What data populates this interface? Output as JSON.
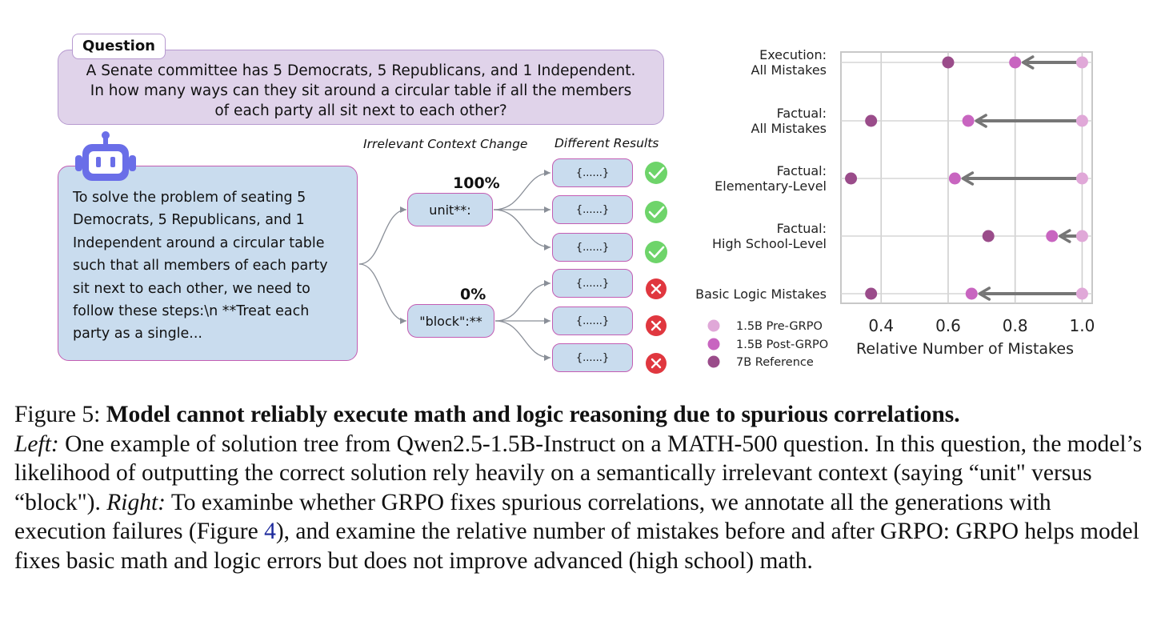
{
  "left_panel": {
    "question_tag": "Question",
    "question_lines": [
      "A Senate committee has 5 Democrats, 5 Republicans, and 1 Independent.",
      "In how many ways can they sit around a circular table if all the members",
      "of each party all sit next to each other?"
    ],
    "answer_lines": [
      "To solve the problem of seating 5",
      "Democrats, 5 Republicans, and 1",
      "Independent around a circular table",
      "such that all members of each party",
      "sit next to each other, we need to",
      "follow these steps:\\n **Treat each",
      "party as a single..."
    ],
    "header_change": "Irrelevant Context Change",
    "header_results": "Different Results",
    "branches": [
      {
        "token": "unit**:",
        "percent": "100%",
        "percent_color": "#2e8b2e",
        "results": [
          "{......}",
          "{......}",
          "{......}"
        ],
        "status": "correct"
      },
      {
        "token": "\"block\":**",
        "percent": "0%",
        "percent_color": "#d12a2a",
        "results": [
          "{......}",
          "{......}",
          "{......}"
        ],
        "status": "wrong"
      }
    ],
    "colors": {
      "question_fill": "#e0d3ea",
      "answer_fill": "#c9dcee",
      "border": "#c35db3",
      "check": "#6ed46a",
      "cross": "#e0373f",
      "robot": "#6a6ee8"
    }
  },
  "chart_data": {
    "type": "dot-arrow",
    "title": "",
    "xlabel": "Relative Number of Mistakes",
    "ylabel": "",
    "xlim": [
      0.28,
      1.03
    ],
    "xticks": [
      0.4,
      0.6,
      0.8,
      1.0
    ],
    "xtick_labels": [
      "0.4",
      "0.6",
      "0.8",
      "1.0"
    ],
    "grid": true,
    "legend_position": "bottom-left",
    "categories": [
      [
        "Execution:",
        "All Mistakes"
      ],
      [
        "Factual:",
        "All Mistakes"
      ],
      [
        "Factual:",
        "Elementary-Level"
      ],
      [
        "Factual:",
        "High School-Level"
      ],
      [
        "Basic Logic Mistakes"
      ]
    ],
    "series": [
      {
        "name": "1.5B Pre-GRPO",
        "color": "#e0a8d8",
        "values": [
          1.0,
          1.0,
          1.0,
          1.0,
          1.0
        ]
      },
      {
        "name": "1.5B Post-GRPO",
        "color": "#c865c0",
        "values": [
          0.8,
          0.66,
          0.62,
          0.91,
          0.67
        ]
      },
      {
        "name": "7B Reference",
        "color": "#9a4c8a",
        "values": [
          0.6,
          0.37,
          0.31,
          0.72,
          0.37
        ]
      }
    ],
    "arrows": "from 1.5B Pre-GRPO to 1.5B Post-GRPO"
  },
  "caption": {
    "prefix": "Figure 5: ",
    "title": "Model cannot reliably execute math and logic reasoning due to spurious correlations.",
    "left_label": "Left:",
    "left_text": " One example of solution tree from Qwen2.5-1.5B-Instruct on a MATH-500 question. In this question, the model’s likelihood of outputting the correct solution rely heavily on a semantically irrelevant context (saying “unit\" versus “block\"). ",
    "right_label": "Right:",
    "right_text_1": " To examinbe whether GRPO fixes spurious correlations, we annotate all the generations with execution failures (Figure ",
    "figure_ref": "4",
    "right_text_2": "), and examine the relative number of mistakes before and after GRPO: GRPO helps model fixes basic math and logic errors but does not improve advanced (high school) math."
  }
}
